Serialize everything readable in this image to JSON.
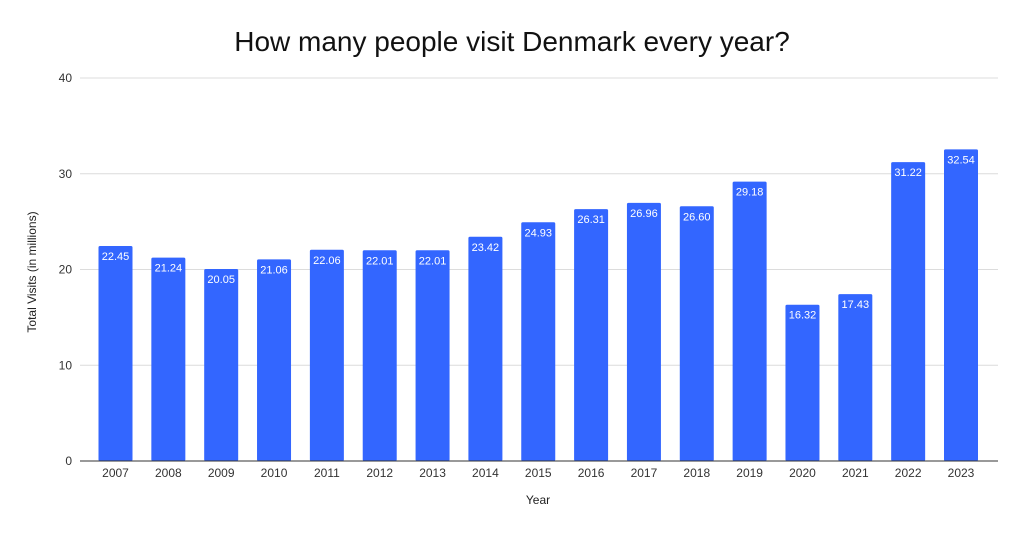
{
  "chart_data": {
    "type": "bar",
    "title": "How many people visit Denmark every year?",
    "xlabel": "Year",
    "ylabel": "Total Visits (in millions)",
    "ylim": [
      0,
      40
    ],
    "yticks": [
      0,
      10,
      20,
      30,
      40
    ],
    "grid": true,
    "legend": "none",
    "bar_color": "#3366ff",
    "categories": [
      "2007",
      "2008",
      "2009",
      "2010",
      "2011",
      "2012",
      "2013",
      "2014",
      "2015",
      "2016",
      "2017",
      "2018",
      "2019",
      "2020",
      "2021",
      "2022",
      "2023"
    ],
    "values": [
      22.45,
      21.24,
      20.05,
      21.06,
      22.06,
      22.01,
      22.01,
      23.42,
      24.93,
      26.31,
      26.96,
      26.6,
      29.18,
      16.32,
      17.43,
      31.22,
      32.54
    ],
    "value_labels": [
      "22.45",
      "21.24",
      "20.05",
      "21.06",
      "22.06",
      "22.01",
      "22.01",
      "23.42",
      "24.93",
      "26.31",
      "26.96",
      "26.60",
      "29.18",
      "16.32",
      "17.43",
      "31.22",
      "32.54"
    ]
  }
}
